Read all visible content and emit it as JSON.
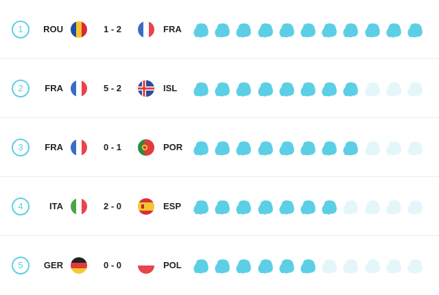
{
  "colors": {
    "accent": "#5ccfe6",
    "filled": "#5ccfe6",
    "empty": "#e4f6fa"
  },
  "blob_total": 11,
  "matches": [
    {
      "rank": "1",
      "home": "ROU",
      "away": "FRA",
      "score": "1 - 2",
      "home_flag": "ROU",
      "away_flag": "FRA",
      "filled": 11
    },
    {
      "rank": "2",
      "home": "FRA",
      "away": "ISL",
      "score": "5 - 2",
      "home_flag": "FRA",
      "away_flag": "ISL",
      "filled": 8
    },
    {
      "rank": "3",
      "home": "FRA",
      "away": "POR",
      "score": "0 - 1",
      "home_flag": "FRA",
      "away_flag": "POR",
      "filled": 8
    },
    {
      "rank": "4",
      "home": "ITA",
      "away": "ESP",
      "score": "2 - 0",
      "home_flag": "ITA",
      "away_flag": "ESP",
      "filled": 7
    },
    {
      "rank": "5",
      "home": "GER",
      "away": "POL",
      "score": "0 - 0",
      "home_flag": "GER",
      "away_flag": "POL",
      "filled": 6
    }
  ]
}
